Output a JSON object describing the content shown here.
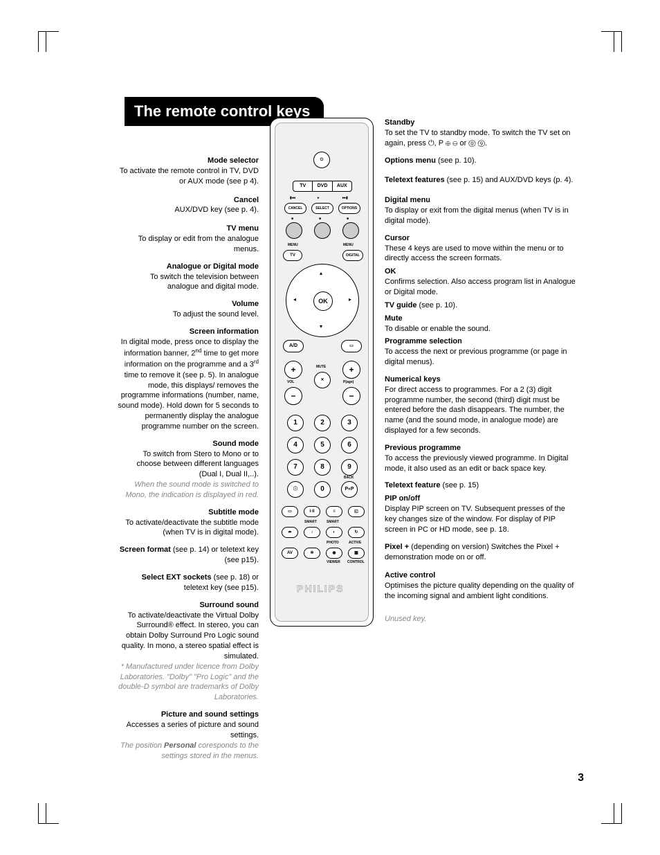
{
  "page_title": "The remote control keys",
  "page_number": "3",
  "brand": "PHILIPS",
  "crop_color": "#000000",
  "title_bar": {
    "bg": "#000000",
    "fg": "#ffffff"
  },
  "remote": {
    "border_color": "#000000",
    "inner_bg": "#f0f0f0",
    "mode_labels": [
      "TV",
      "DVD",
      "AUX"
    ],
    "nav_ok": "OK",
    "keypad": [
      "1",
      "2",
      "3",
      "4",
      "5",
      "6",
      "7",
      "8",
      "9",
      "0"
    ],
    "labels": {
      "cancel": "CANCEL",
      "select": "SELECT",
      "options": "OPTIONS",
      "menu": "MENU",
      "tv": "TV",
      "digital": "DIGITAL",
      "ad": "A/D",
      "mute": "MUTE",
      "vol": "VOL",
      "page": "P(age)",
      "back": "BACK",
      "pp": "P«P",
      "smart": "SMART",
      "photo": "PHOTO",
      "active": "ACTIVE",
      "viewer": "VIEWER",
      "control": "CONTROL",
      "av": "AV"
    }
  },
  "left": [
    {
      "h": "Mode selector",
      "b": "To activate the remote control in TV, DVD or AUX mode (see p 4)."
    },
    {
      "h": "Cancel",
      "b": "AUX/DVD key (see p. 4)."
    },
    {
      "h": "TV menu",
      "b": "To display or edit from the analogue menus."
    },
    {
      "h": "Analogue or Digital mode",
      "b": "To switch the television between analogue and digital mode."
    },
    {
      "h": "Volume",
      "b": "To adjust the sound level."
    },
    {
      "h": "Screen information",
      "b": "In digital mode, press once to display the information banner, 2<sup>nd</sup> time to get more information on the programme and a 3<sup>rd</sup> time to remove it (see p. 5). In analogue mode, this displays/ removes the programme informations (number, name, sound mode). Hold down for 5 seconds to permanently display the analogue programme number on the screen."
    },
    {
      "h": "Sound mode",
      "b": "To switch from Stero to Mono or to choose between different languages (Dual I, Dual II,..).",
      "i": "When the sound mode is switched to Mono, the indication is displayed in red."
    },
    {
      "h": "Subtitle mode",
      "b": "To activate/deactivate the subtitle mode (when TV is in digital mode)."
    },
    {
      "h": "Screen format",
      "b_inline": " (see p. 14) or teletext key (see p15)."
    },
    {
      "h": "Select EXT sockets",
      "b_inline": " (see p. 18) or teletext key (see p15)."
    },
    {
      "h": "Surround sound",
      "b": "To activate/deactivate the Virtual Dolby Surround® effect. In stereo, you can obtain Dolby Surround Pro Logic sound quality. In mono, a stereo spatial effect is simulated.",
      "i": "* Manufactured under licence from Dolby Laboratories. \"Dolby\" \"Pro Logic\" and the double-D symbol are trademarks of Dolby Laboratories."
    },
    {
      "h": "Picture and sound settings",
      "b": "Accesses a series of picture and sound settings.",
      "i": "The position <b>Personal</b> coresponds to the settings stored in the menus."
    }
  ],
  "right": [
    {
      "h": "Standby",
      "b": "To set the TV to standby mode. To switch the TV set on again, press ⏻, P ⊕ ⊖ or ⓪ ⑨."
    },
    {
      "h": "Options menu",
      "b_inline": " (see p. 10)."
    },
    {
      "h": "Teletext features",
      "b_inline": " (see p. 15) and AUX/DVD keys (p. 4)."
    },
    {
      "h": "Digital menu",
      "b": "To display or exit from the digital menus (when TV is in digital mode)."
    },
    {
      "h": "Cursor",
      "b": "These 4 keys are used to move within the menu or to directly access the screen formats."
    },
    {
      "h": "OK",
      "b": "Confirms selection. Also access program list in Analogue or Digital mode."
    },
    {
      "h": "TV guide",
      "b_inline": " (see p. 10)."
    },
    {
      "h": "Mute",
      "b": "To disable or enable the sound."
    },
    {
      "h": "Programme selection",
      "b": "To access the next or previous programme (or page in digital menus)."
    },
    {
      "h": "Numerical keys",
      "b": "For direct access to programmes. For a 2 (3) digit programme number, the second (third) digit must be entered before the dash disappears. The number, the name (and the sound mode, in analogue mode) are displayed for a few seconds."
    },
    {
      "h": "Previous programme",
      "b": "To access the previously viewed programme. In Digital mode, it also used as an edit or back space key."
    },
    {
      "h": "Teletext feature",
      "b_inline": " (see p. 15)"
    },
    {
      "h": "PIP on/off",
      "b": "Display PIP screen on TV. Subsequent presses of the key changes size of the window. For display of PIP screen in PC or HD mode, see p. 18."
    },
    {
      "h": "Pixel +",
      "b_inline": " (depending on version) Switches the Pixel + demonstration mode on or off."
    },
    {
      "h": "Active control",
      "b": "Optimises the picture quality depending on the quality of the incoming signal and ambient light conditions."
    },
    {
      "i": "Unused key."
    }
  ]
}
